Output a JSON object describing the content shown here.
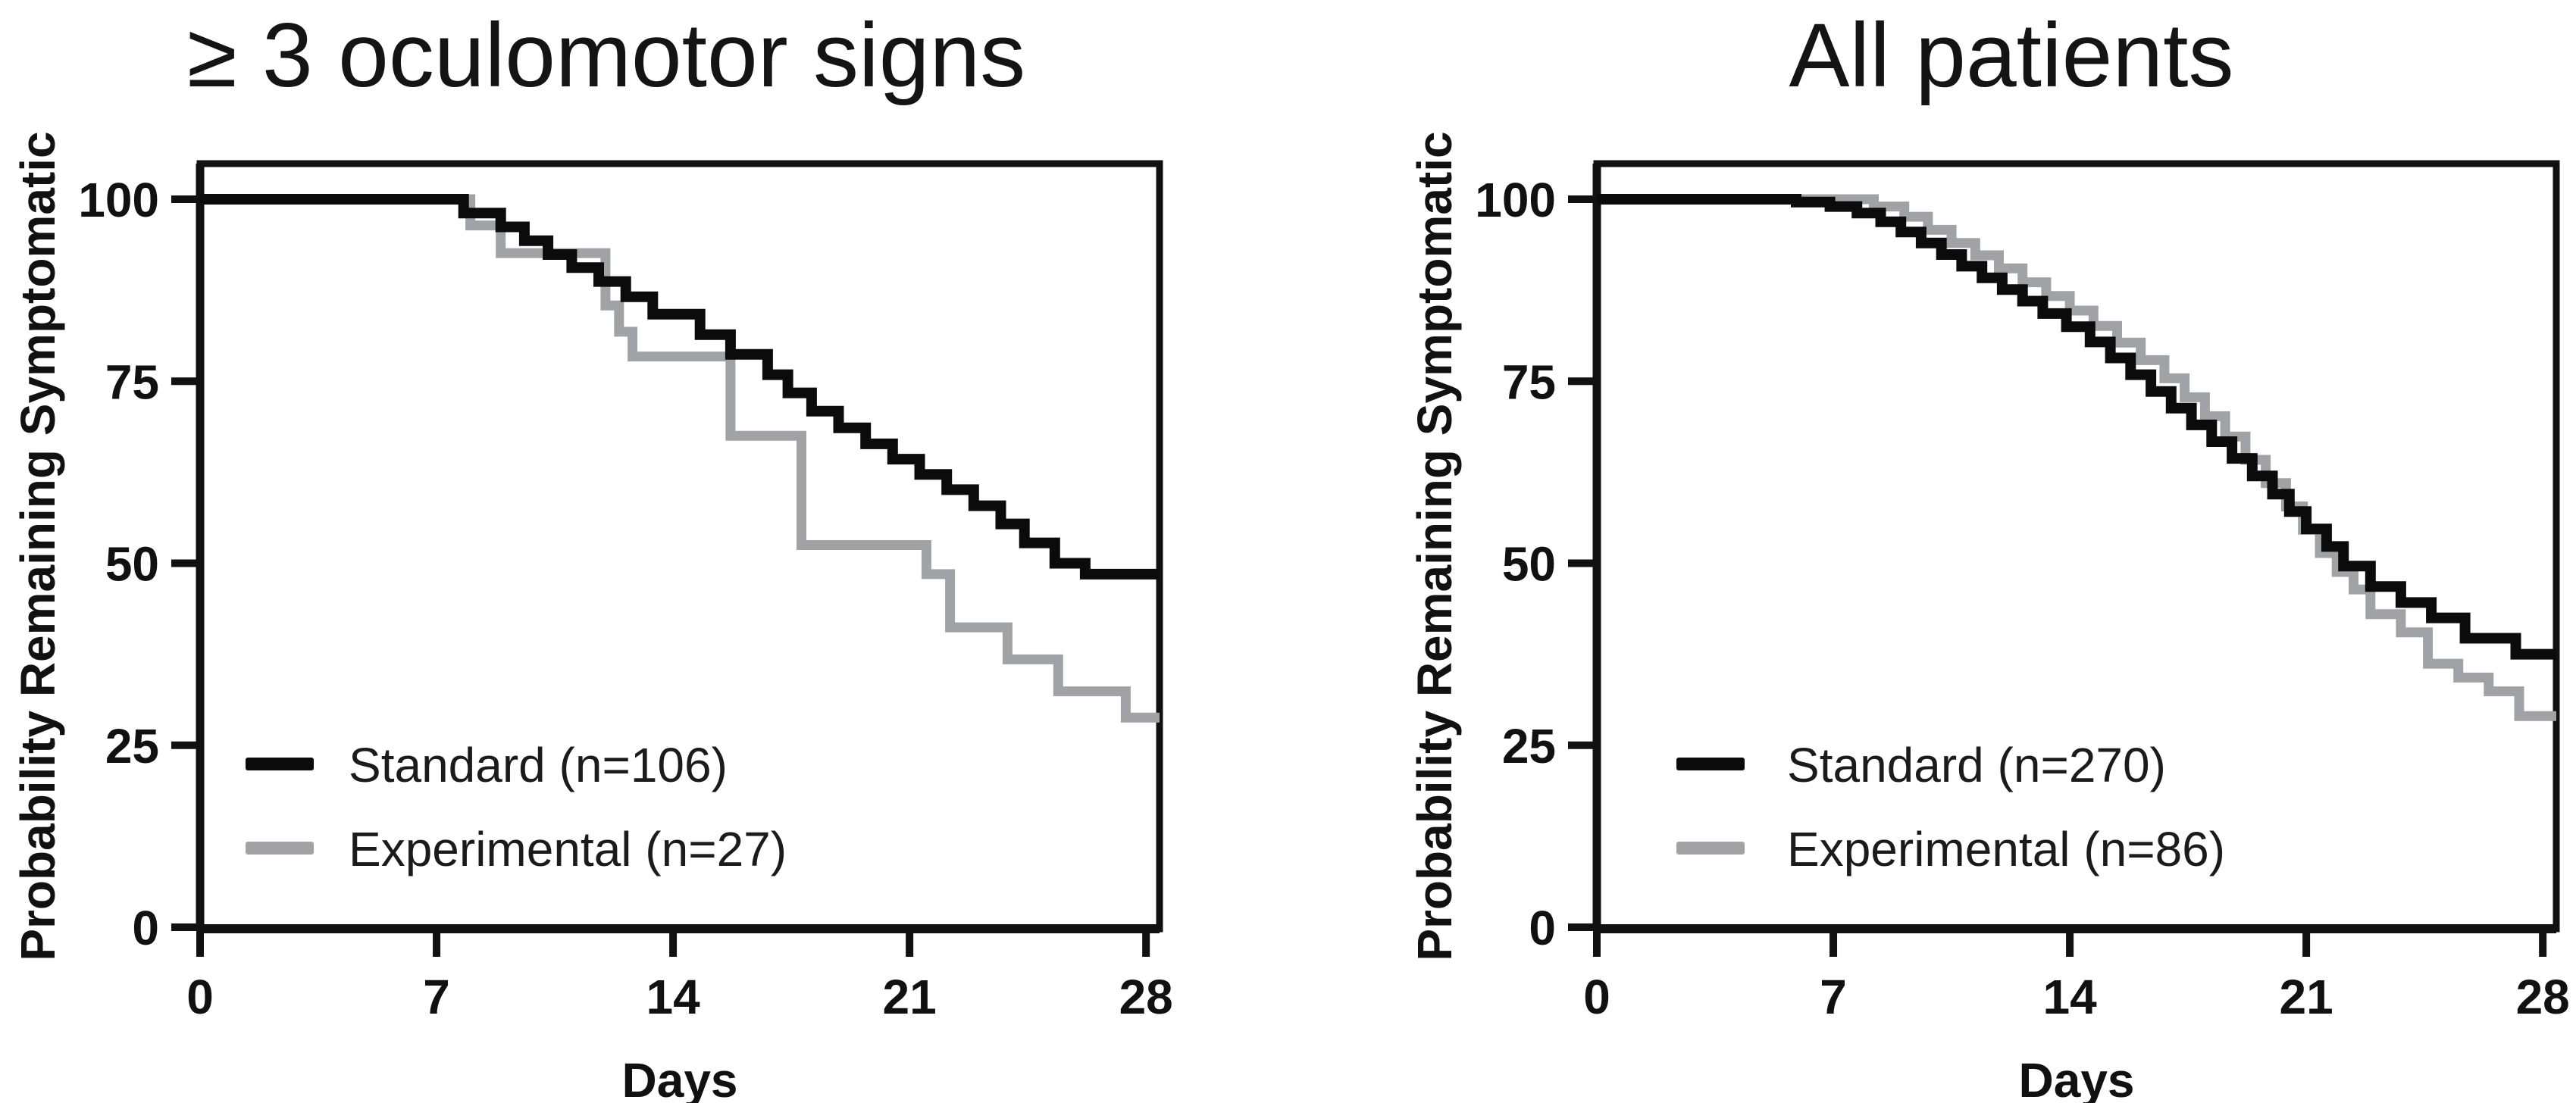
{
  "figure": {
    "background_color": "#ffffff",
    "axis_color": "#111111",
    "text_color": "#161616"
  },
  "chart_data": [
    {
      "type": "line",
      "subtype": "kaplan-meier-step",
      "title": "≥ 3 oculomotor signs",
      "xlabel": "Days",
      "ylabel": "Probability Remaining Symptomatic",
      "xlim": [
        0,
        28.4
      ],
      "ylim": [
        0,
        105
      ],
      "xticks": [
        0,
        7,
        14,
        21,
        28
      ],
      "yticks": [
        0,
        25,
        50,
        75,
        100
      ],
      "grid": false,
      "legend_position": "lower-left",
      "series": [
        {
          "name": "Standard (n=106)",
          "color": "#0b0b0b",
          "line_width": 14,
          "start_value": 100,
          "end_day": 28.4,
          "steps": [
            [
              7.8,
              98.1
            ],
            [
              8.9,
              96.2
            ],
            [
              9.6,
              94.3
            ],
            [
              10.3,
              92.4
            ],
            [
              11.0,
              90.6
            ],
            [
              11.8,
              88.7
            ],
            [
              12.6,
              86.6
            ],
            [
              13.4,
              84.2
            ],
            [
              14.8,
              81.4
            ],
            [
              15.7,
              78.7
            ],
            [
              16.8,
              75.9
            ],
            [
              17.4,
              73.4
            ],
            [
              18.1,
              70.9
            ],
            [
              18.9,
              68.6
            ],
            [
              19.7,
              66.4
            ],
            [
              20.5,
              64.3
            ],
            [
              21.3,
              62.2
            ],
            [
              22.1,
              60.1
            ],
            [
              22.9,
              57.9
            ],
            [
              23.7,
              55.4
            ],
            [
              24.4,
              52.8
            ],
            [
              25.3,
              50.0
            ],
            [
              26.2,
              48.5
            ]
          ]
        },
        {
          "name": "Experimental (n=27)",
          "color": "#a0a2a5",
          "line_width": 13,
          "start_value": 100,
          "end_day": 28.4,
          "steps": [
            [
              8.0,
              96.4
            ],
            [
              8.9,
              92.6
            ],
            [
              12.0,
              85.4
            ],
            [
              12.4,
              81.8
            ],
            [
              12.8,
              78.4
            ],
            [
              15.7,
              67.5
            ],
            [
              17.8,
              52.5
            ],
            [
              21.5,
              48.5
            ],
            [
              22.2,
              41.2
            ],
            [
              23.9,
              36.8
            ],
            [
              25.4,
              32.4
            ],
            [
              27.4,
              28.8
            ]
          ]
        }
      ]
    },
    {
      "type": "line",
      "subtype": "kaplan-meier-step",
      "title": "All patients",
      "xlabel": "Days",
      "ylabel": "Probability Remaining Symptomatic",
      "xlim": [
        0,
        28.4
      ],
      "ylim": [
        0,
        105
      ],
      "xticks": [
        0,
        7,
        14,
        21,
        28
      ],
      "yticks": [
        0,
        25,
        50,
        75,
        100
      ],
      "grid": false,
      "legend_position": "lower-left",
      "series": [
        {
          "name": "Standard (n=270)",
          "color": "#0b0b0b",
          "line_width": 14,
          "start_value": 100,
          "end_day": 28.4,
          "steps": [
            [
              5.9,
              99.6
            ],
            [
              6.9,
              99.0
            ],
            [
              7.7,
              98.1
            ],
            [
              8.4,
              96.9
            ],
            [
              9.0,
              95.5
            ],
            [
              9.6,
              94.0
            ],
            [
              10.2,
              92.4
            ],
            [
              10.8,
              90.8
            ],
            [
              11.4,
              89.2
            ],
            [
              12.0,
              87.6
            ],
            [
              12.6,
              86.0
            ],
            [
              13.2,
              84.3
            ],
            [
              13.9,
              82.5
            ],
            [
              14.6,
              80.4
            ],
            [
              15.2,
              78.2
            ],
            [
              15.8,
              75.9
            ],
            [
              16.4,
              73.6
            ],
            [
              17.0,
              71.3
            ],
            [
              17.6,
              69.0
            ],
            [
              18.2,
              66.7
            ],
            [
              18.8,
              64.4
            ],
            [
              19.4,
              62.0
            ],
            [
              20.0,
              59.5
            ],
            [
              20.5,
              57.1
            ],
            [
              21.0,
              54.7
            ],
            [
              21.6,
              52.3
            ],
            [
              22.1,
              49.6
            ],
            [
              22.9,
              46.8
            ],
            [
              23.8,
              44.6
            ],
            [
              24.7,
              42.5
            ],
            [
              25.7,
              39.7
            ],
            [
              27.2,
              37.5
            ]
          ]
        },
        {
          "name": "Experimental (n=86)",
          "color": "#a0a2a5",
          "line_width": 13,
          "start_value": 100,
          "end_day": 28.4,
          "steps": [
            [
              8.2,
              99.0
            ],
            [
              9.1,
              97.6
            ],
            [
              9.8,
              95.8
            ],
            [
              10.5,
              94.0
            ],
            [
              11.2,
              92.3
            ],
            [
              11.9,
              90.5
            ],
            [
              12.6,
              88.6
            ],
            [
              13.3,
              86.7
            ],
            [
              14.0,
              84.7
            ],
            [
              14.7,
              82.6
            ],
            [
              15.4,
              80.3
            ],
            [
              16.1,
              77.9
            ],
            [
              16.8,
              75.4
            ],
            [
              17.4,
              72.8
            ],
            [
              18.0,
              70.2
            ],
            [
              18.6,
              67.4
            ],
            [
              19.2,
              64.2
            ],
            [
              19.8,
              61.0
            ],
            [
              20.4,
              57.8
            ],
            [
              20.9,
              54.6
            ],
            [
              21.4,
              51.4
            ],
            [
              21.9,
              48.8
            ],
            [
              22.4,
              46.4
            ],
            [
              22.9,
              43.0
            ],
            [
              23.8,
              40.5
            ],
            [
              24.6,
              36.2
            ],
            [
              25.5,
              34.3
            ],
            [
              26.4,
              32.4
            ],
            [
              27.3,
              29.0
            ]
          ]
        }
      ]
    }
  ]
}
